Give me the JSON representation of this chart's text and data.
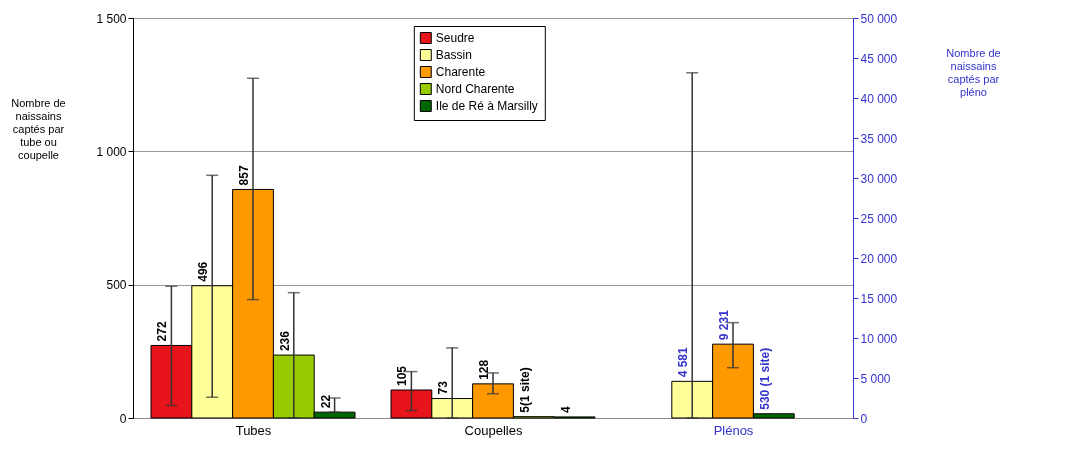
{
  "chart_data": {
    "type": "bar",
    "categories": [
      "Tubes",
      "Coupelles",
      "Plénos"
    ],
    "ylabel": "Nombre de naissains captés par tube ou coupelle",
    "y2label": "Nombre de naissains captés par pléno",
    "ylim": [
      0,
      1500
    ],
    "yticks": [
      0,
      500,
      {
        "value": 1000,
        "label": "1 000"
      },
      {
        "value": 1500,
        "label": "1 500"
      }
    ],
    "y2lim": [
      0,
      50000
    ],
    "y2ticks": [
      0,
      {
        "value": 5000,
        "label": "5 000"
      },
      {
        "value": 10000,
        "label": "10 000"
      },
      {
        "value": 15000,
        "label": "15 000"
      },
      {
        "value": 20000,
        "label": "20 000"
      },
      {
        "value": 25000,
        "label": "25 000"
      },
      {
        "value": 30000,
        "label": "30 000"
      },
      {
        "value": 35000,
        "label": "35 000"
      },
      {
        "value": 40000,
        "label": "40 000"
      },
      {
        "value": 45000,
        "label": "45 000"
      },
      {
        "value": 50000,
        "label": "50 000"
      }
    ],
    "grid": "y",
    "legend": "top",
    "series": [
      {
        "name": "Seudre",
        "color": "#e8141c",
        "values": [
          272,
          105,
          null
        ],
        "errors": [
          [
            47,
            494
          ],
          [
            28,
            174
          ],
          null
        ],
        "value_labels": [
          "272",
          "105",
          null
        ]
      },
      {
        "name": "Bassin",
        "color": "#ffff99",
        "values": [
          496,
          73,
          null
        ],
        "errors": [
          [
            78,
            910
          ],
          [
            0,
            263
          ],
          null
        ],
        "value_labels": [
          "496",
          "73",
          null
        ]
      },
      {
        "name": "Charente",
        "color": "#ff9900",
        "values": [
          857,
          128,
          null
        ],
        "errors": [
          [
            444,
            1274
          ],
          [
            91,
            169
          ],
          null
        ],
        "value_labels": [
          "857",
          "128",
          null
        ]
      },
      {
        "name": "Nord Charente",
        "color": "#99cc00",
        "values": [
          236,
          5,
          null
        ],
        "errors": [
          [
            0,
            470
          ],
          null,
          null
        ],
        "value_labels": [
          "236",
          "5(1 site)",
          null
        ]
      },
      {
        "name": "Ile de Ré à Marsilly",
        "color": "#006600",
        "values": [
          22,
          4,
          null
        ],
        "errors": [
          [
            22,
            75
          ],
          null,
          null
        ],
        "value_labels": [
          "22",
          "4",
          null
        ]
      },
      {
        "color": "#ffff99",
        "axis": "y2",
        "values": [
          null,
          null,
          4581
        ],
        "errors": [
          null,
          null,
          [
            0,
            43150
          ]
        ],
        "value_labels": [
          null,
          null,
          "4 581"
        ]
      },
      {
        "color": "#ff9900",
        "axis": "y2",
        "values": [
          null,
          null,
          9231
        ],
        "errors": [
          null,
          null,
          [
            6290,
            11920
          ]
        ],
        "value_labels": [
          null,
          null,
          "9 231"
        ]
      },
      {
        "color": "#006600",
        "axis": "y2",
        "values": [
          null,
          null,
          530
        ],
        "value_labels": [
          null,
          null,
          "530 (1 site)"
        ]
      }
    ]
  }
}
